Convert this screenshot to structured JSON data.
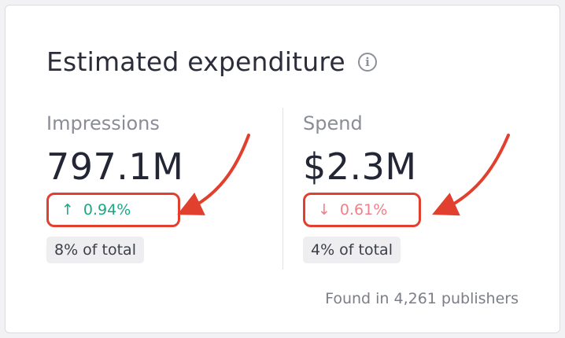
{
  "card": {
    "title": "Estimated expenditure",
    "info_icon": "info-icon"
  },
  "metrics": [
    {
      "label": "Impressions",
      "value": "797.1M",
      "change": "0.94%",
      "change_direction": "up",
      "change_arrow": "↑",
      "share": "8% of total"
    },
    {
      "label": "Spend",
      "value": "$2.3M",
      "change": "0.61%",
      "change_direction": "down",
      "change_arrow": "↓",
      "share": "4% of total"
    }
  ],
  "footer": {
    "note": "Found in 4,261 publishers"
  },
  "colors": {
    "positive": "#1ea683",
    "negative": "#ef7f88",
    "annotation": "#e2402f"
  }
}
